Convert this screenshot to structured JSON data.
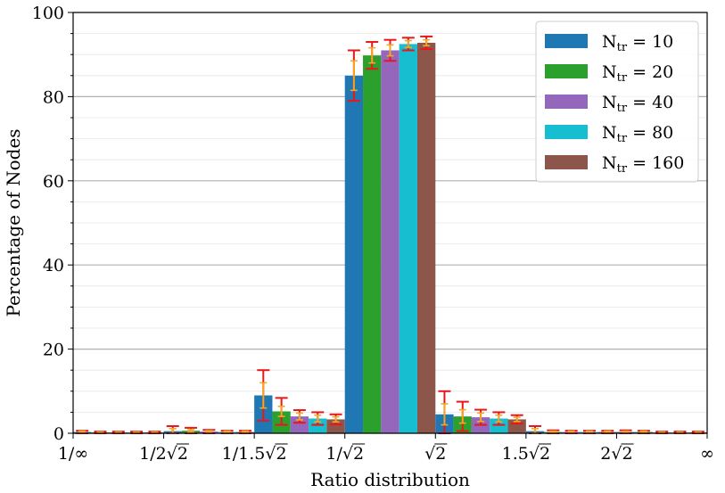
{
  "chart_data": {
    "type": "bar",
    "xlabel": "Ratio distribution",
    "ylabel": "Percentage of Nodes",
    "ylim": [
      0,
      100
    ],
    "yticks": [
      0,
      20,
      40,
      60,
      80,
      100
    ],
    "grid": true,
    "legend_position": "top-right",
    "x_tick_labels": [
      {
        "base": "1/∞",
        "sqrt": false
      },
      {
        "base": "1/2",
        "sqrt": true
      },
      {
        "base": "1/1.5",
        "sqrt": true
      },
      {
        "base": "1/",
        "sqrt": true
      },
      {
        "base": "",
        "sqrt": true
      },
      {
        "base": "1.5",
        "sqrt": true
      },
      {
        "base": "2",
        "sqrt": true
      },
      {
        "base": "∞",
        "sqrt": false
      }
    ],
    "categories": [
      "1/∞ – 1/2√2",
      "1/2√2 – 1/1.5√2",
      "1/1.5√2 – 1/√2",
      "1/√2 – √2",
      "√2 – 1.5√2",
      "1.5√2 – 2√2",
      "2√2 – ∞"
    ],
    "series": [
      {
        "name": "N_tr = 10",
        "label_main": "N",
        "label_sub": "tr",
        "label_rest": " = 10",
        "color": "#1f77b4",
        "values": [
          0.3,
          0.5,
          9.0,
          85.0,
          4.5,
          0.5,
          0.3
        ],
        "err_red": [
          0.3,
          1.2,
          6.0,
          6.0,
          5.5,
          1.2,
          0.4
        ],
        "err_orange": [
          0.2,
          0.6,
          3.0,
          3.5,
          2.5,
          0.6,
          0.2
        ]
      },
      {
        "name": "N_tr = 20",
        "label_main": "N",
        "label_sub": "tr",
        "label_rest": " = 20",
        "color": "#2ca02c",
        "values": [
          0.2,
          0.6,
          5.2,
          89.8,
          4.0,
          0.3,
          0.3
        ],
        "err_red": [
          0.2,
          0.7,
          3.2,
          3.2,
          3.5,
          0.4,
          0.3
        ],
        "err_orange": [
          0.1,
          0.3,
          1.2,
          1.8,
          1.6,
          0.2,
          0.2
        ]
      },
      {
        "name": "N_tr = 40",
        "label_main": "N",
        "label_sub": "tr",
        "label_rest": " = 40",
        "color": "#9467bd",
        "values": [
          0.2,
          0.4,
          4.0,
          91.0,
          3.8,
          0.3,
          0.2
        ],
        "err_red": [
          0.2,
          0.4,
          1.5,
          2.5,
          1.8,
          0.3,
          0.2
        ],
        "err_orange": [
          0.1,
          0.2,
          0.8,
          1.3,
          1.0,
          0.2,
          0.1
        ]
      },
      {
        "name": "N_tr = 80",
        "label_main": "N",
        "label_sub": "tr",
        "label_rest": " = 80",
        "color": "#17becf",
        "values": [
          0.2,
          0.3,
          3.5,
          92.5,
          3.5,
          0.3,
          0.2
        ],
        "err_red": [
          0.2,
          0.3,
          1.5,
          1.5,
          1.5,
          0.3,
          0.2
        ],
        "err_orange": [
          0.1,
          0.2,
          0.8,
          0.8,
          0.8,
          0.2,
          0.1
        ]
      },
      {
        "name": "N_tr = 160",
        "label_main": "N",
        "label_sub": "tr",
        "label_rest": " = 160",
        "color": "#8c564b",
        "values": [
          0.2,
          0.3,
          3.3,
          92.8,
          3.3,
          0.3,
          0.2
        ],
        "err_red": [
          0.2,
          0.3,
          1.2,
          1.5,
          1.0,
          0.3,
          0.2
        ],
        "err_orange": [
          0.1,
          0.2,
          0.6,
          0.7,
          0.5,
          0.2,
          0.1
        ]
      }
    ],
    "error_bar_colors": {
      "outer": "#e8171b",
      "inner": "#f5a623"
    }
  }
}
